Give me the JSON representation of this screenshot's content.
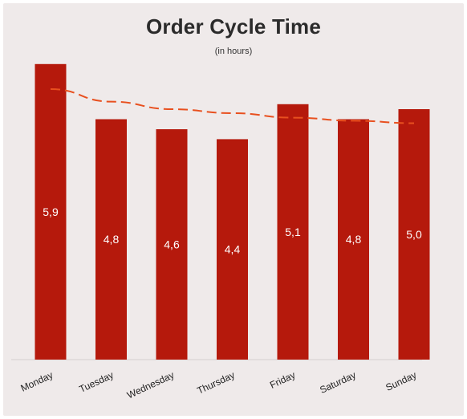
{
  "chart_data": {
    "type": "bar",
    "title": "Order Cycle Time",
    "subtitle": "(in hours)",
    "categories": [
      "Monday",
      "Tuesday",
      "Wednesday",
      "Thursday",
      "Friday",
      "Saturday",
      "Sunday"
    ],
    "values": [
      5.9,
      4.8,
      4.6,
      4.4,
      5.1,
      4.8,
      5.0
    ],
    "value_labels": [
      "5,9",
      "4,8",
      "4,6",
      "4,4",
      "5,1",
      "4,8",
      "5,0"
    ],
    "trend": {
      "type": "dashed-line",
      "values": [
        5.4,
        5.15,
        5.0,
        4.92,
        4.83,
        4.77,
        4.72
      ]
    },
    "ylim": [
      0,
      6
    ],
    "grid": false,
    "legend": "none",
    "colors": {
      "bar": "#b5190c",
      "trend": "#e8501f",
      "background": "#efeaea",
      "title": "#2b2b2b"
    }
  }
}
